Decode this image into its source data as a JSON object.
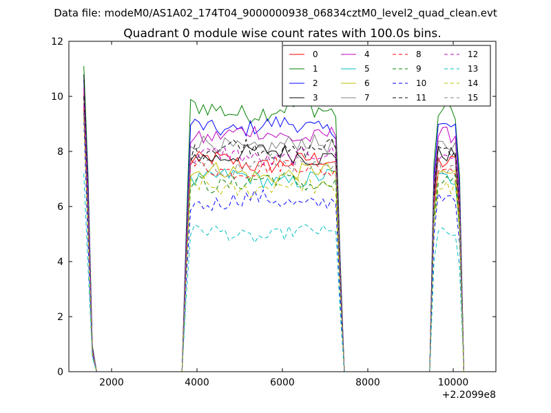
{
  "figure": {
    "suptitle": "Data file: modeM0/AS1A02_174T04_9000000938_06834cztM0_level2_quad_clean.evt",
    "x_offset_label": "+2.2099e8"
  },
  "chart_data": {
    "type": "line",
    "title": "Quadrant 0 module wise count rates with 100.0s bins.",
    "xlabel": "",
    "ylabel": "",
    "xlim": [
      1000,
      11000
    ],
    "ylim": [
      0,
      12
    ],
    "x_ticks": [
      2000,
      4000,
      6000,
      8000,
      10000
    ],
    "y_ticks": [
      0,
      2,
      4,
      6,
      8,
      10,
      12
    ],
    "x_tick_labels": [
      "2000",
      "4000",
      "6000",
      "8000",
      "10000"
    ],
    "y_tick_labels": [
      "0",
      "2",
      "4",
      "6",
      "8",
      "10",
      "12"
    ],
    "grid": false,
    "legend": {
      "placement": "top-right",
      "columns": 4
    },
    "segments": [
      {
        "x_start": 1350,
        "x_end": 1550,
        "count": 3
      },
      {
        "x_start": 3750,
        "x_end": 7350,
        "count": 37
      },
      {
        "x_start": 9550,
        "x_end": 10150,
        "count": 7
      }
    ],
    "gap_value": 0,
    "series": [
      {
        "name": "0",
        "color": "#ff0000",
        "dash": "solid",
        "level": 7.6,
        "first": 10.1,
        "ampl": 0.3
      },
      {
        "name": "1",
        "color": "#008000",
        "dash": "solid",
        "level": 9.5,
        "first": 11.1,
        "ampl": 0.35
      },
      {
        "name": "2",
        "color": "#0000ff",
        "dash": "solid",
        "level": 8.9,
        "first": 10.6,
        "ampl": 0.3
      },
      {
        "name": "3",
        "color": "#000000",
        "dash": "solid",
        "level": 7.9,
        "first": 10.8,
        "ampl": 0.3
      },
      {
        "name": "4",
        "color": "#bf00bf",
        "dash": "solid",
        "level": 8.6,
        "first": 10.3,
        "ampl": 0.3
      },
      {
        "name": "5",
        "color": "#00bfbf",
        "dash": "solid",
        "level": 7.0,
        "first": 9.5,
        "ampl": 0.3
      },
      {
        "name": "6",
        "color": "#bfbf00",
        "dash": "solid",
        "level": 7.2,
        "first": 9.8,
        "ampl": 0.3
      },
      {
        "name": "7",
        "color": "#808080",
        "dash": "solid",
        "level": 8.2,
        "first": 9.9,
        "ampl": 0.3
      },
      {
        "name": "8",
        "color": "#ff0000",
        "dash": "dashed",
        "level": 7.4,
        "first": 9.6,
        "ampl": 0.3
      },
      {
        "name": "9",
        "color": "#008000",
        "dash": "dashed",
        "level": 6.9,
        "first": 9.4,
        "ampl": 0.3
      },
      {
        "name": "10",
        "color": "#0000ff",
        "dash": "dashed",
        "level": 6.2,
        "first": 9.1,
        "ampl": 0.3
      },
      {
        "name": "11",
        "color": "#000000",
        "dash": "dashed",
        "level": 8.1,
        "first": 10.0,
        "ampl": 0.3
      },
      {
        "name": "12",
        "color": "#bf00bf",
        "dash": "dashed",
        "level": 7.8,
        "first": 9.7,
        "ampl": 0.3
      },
      {
        "name": "13",
        "color": "#00bfbf",
        "dash": "dashed",
        "level": 5.0,
        "first": 7.2,
        "ampl": 0.25
      },
      {
        "name": "14",
        "color": "#bfbf00",
        "dash": "dashed",
        "level": 6.7,
        "first": 9.2,
        "ampl": 0.3
      },
      {
        "name": "15",
        "color": "#808080",
        "dash": "dashed",
        "level": 7.5,
        "first": 9.3,
        "ampl": 0.3
      }
    ]
  }
}
